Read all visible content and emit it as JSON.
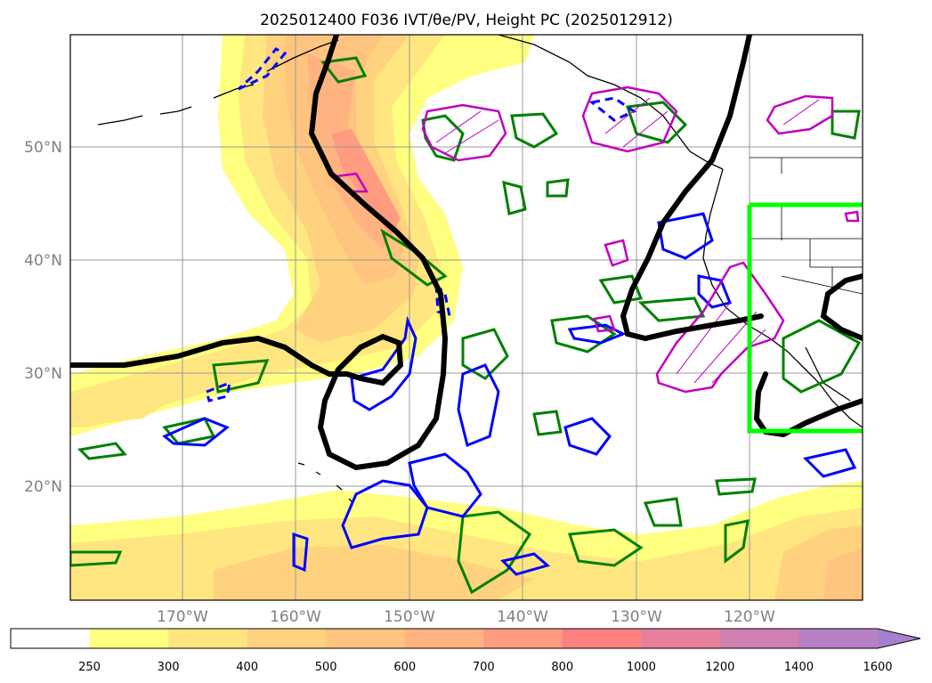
{
  "title": "2025012400 F036 IVT/θe/PV, Height PC (2025012912)",
  "map": {
    "lat_ticks": [
      "50°N",
      "40°N",
      "30°N",
      "20°N"
    ],
    "lon_ticks": [
      "170°W",
      "160°W",
      "150°W",
      "140°W",
      "130°W",
      "120°W"
    ],
    "grid": true
  },
  "colorbar": {
    "labels": [
      "250",
      "300",
      "400",
      "500",
      "600",
      "700",
      "800",
      "1000",
      "1200",
      "1400",
      "1600"
    ],
    "colors": [
      "#ffffff",
      "#ffff80",
      "#ffe680",
      "#ffd27f",
      "#ffc480",
      "#ffb380",
      "#ff9c80",
      "#ff8080",
      "#e87f9c",
      "#d080b0",
      "#b880c4",
      "#a680d0"
    ],
    "extend": "max"
  },
  "contours": {
    "height_pc": "#000000",
    "theta_e_pos": "#008000",
    "pv_pos": "#0000ff",
    "pv_neg": "#c000c0",
    "highlight_box": "#00ff00"
  }
}
